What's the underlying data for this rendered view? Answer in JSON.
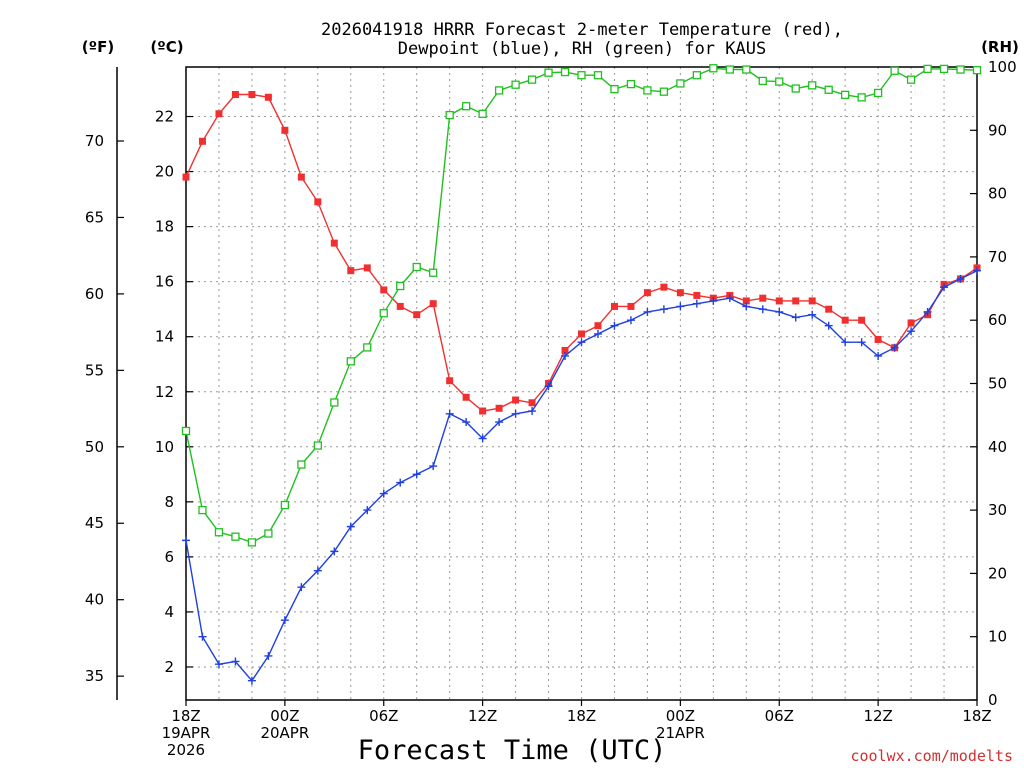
{
  "chart_data": {
    "type": "line",
    "title_lines": [
      "2026041918 HRRR Forecast 2-meter Temperature (red),",
      "Dewpoint (blue), RH (green) for KAUS"
    ],
    "xlabel": "Forecast Time (UTC)",
    "credit": "coolwx.com/modelts",
    "units": {
      "fahrenheit": "(ºF)",
      "celsius": "(ºC)",
      "rh": "(RH)"
    },
    "x_range": [
      0,
      48
    ],
    "x_ticks": [
      {
        "at": 0,
        "lines": [
          "18Z",
          "19APR",
          "2026"
        ]
      },
      {
        "at": 6,
        "lines": [
          "00Z",
          "20APR"
        ]
      },
      {
        "at": 12,
        "lines": [
          "06Z"
        ]
      },
      {
        "at": 18,
        "lines": [
          "12Z"
        ]
      },
      {
        "at": 24,
        "lines": [
          "18Z"
        ]
      },
      {
        "at": 30,
        "lines": [
          "00Z",
          "21APR"
        ]
      },
      {
        "at": 36,
        "lines": [
          "06Z"
        ]
      },
      {
        "at": 42,
        "lines": [
          "12Z"
        ]
      },
      {
        "at": 48,
        "lines": [
          "18Z"
        ]
      }
    ],
    "y_celsius": {
      "range": [
        0.8,
        23.8
      ],
      "ticks": [
        "2",
        "4",
        "6",
        "8",
        "10",
        "12",
        "14",
        "16",
        "18",
        "20",
        "22"
      ]
    },
    "y_fahrenheit": {
      "ticks": [
        "35",
        "40",
        "45",
        "50",
        "55",
        "60",
        "65",
        "70"
      ]
    },
    "y_rh": {
      "range": [
        0,
        100
      ],
      "ticks": [
        "0",
        "10",
        "20",
        "30",
        "40",
        "50",
        "60",
        "70",
        "80",
        "90",
        "100"
      ]
    },
    "series": [
      {
        "name": "Temperature (°C)",
        "axis": "celsius",
        "color": "#f03030",
        "marker": "filled-square",
        "values": [
          19.8,
          21.1,
          22.1,
          22.8,
          22.8,
          22.7,
          21.5,
          19.8,
          18.9,
          17.4,
          16.4,
          16.5,
          15.7,
          15.1,
          14.8,
          15.2,
          12.4,
          11.8,
          11.3,
          11.4,
          11.7,
          11.6,
          12.3,
          13.5,
          14.1,
          14.4,
          15.1,
          15.1,
          15.6,
          15.8,
          15.6,
          15.5,
          15.4,
          15.5,
          15.3,
          15.4,
          15.3,
          15.3,
          15.3,
          15.0,
          14.6,
          14.6,
          13.9,
          13.6,
          14.5,
          14.8,
          15.9,
          16.1,
          16.5
        ]
      },
      {
        "name": "Dewpoint (°C)",
        "axis": "celsius",
        "color": "#2040e0",
        "marker": "plus",
        "values": [
          6.6,
          3.1,
          2.1,
          2.2,
          1.5,
          2.4,
          3.7,
          4.9,
          5.5,
          6.2,
          7.1,
          7.7,
          8.3,
          8.7,
          9.0,
          9.3,
          11.2,
          10.9,
          10.3,
          10.9,
          11.2,
          11.3,
          12.2,
          13.3,
          13.8,
          14.1,
          14.4,
          14.6,
          14.9,
          15.0,
          15.1,
          15.2,
          15.3,
          15.4,
          15.1,
          15.0,
          14.9,
          14.7,
          14.8,
          14.4,
          13.8,
          13.8,
          13.3,
          13.6,
          14.2,
          14.9,
          15.8,
          16.1,
          16.4
        ]
      },
      {
        "name": "RH (%)",
        "axis": "rh",
        "color": "#20c020",
        "marker": "open-square",
        "values": [
          42.5,
          30.0,
          26.5,
          25.8,
          24.9,
          26.3,
          30.8,
          37.2,
          40.2,
          47.0,
          53.5,
          55.7,
          61.1,
          65.4,
          68.4,
          67.5,
          92.4,
          93.8,
          92.6,
          96.3,
          97.2,
          98.0,
          99.1,
          99.2,
          98.7,
          98.7,
          96.5,
          97.3,
          96.3,
          96.1,
          97.4,
          98.7,
          99.8,
          99.6,
          99.6,
          97.8,
          97.7,
          96.6,
          97.1,
          96.4,
          95.6,
          95.2,
          95.9,
          99.4,
          98.0,
          99.7,
          99.7,
          99.6,
          99.5
        ]
      }
    ]
  }
}
